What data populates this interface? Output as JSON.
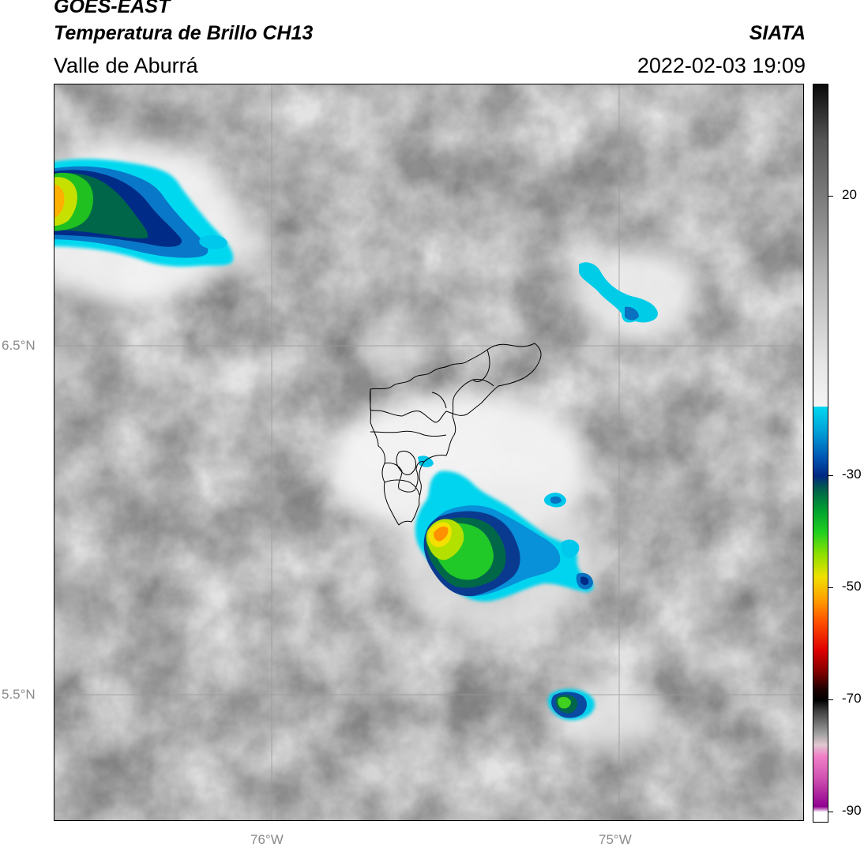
{
  "header": {
    "satellite": "GOES-EAST",
    "product": "Temperatura de Brillo CH13",
    "region": "Valle de Aburrá",
    "organization": "SIATA",
    "datetime": "2022-02-03 19:09"
  },
  "map": {
    "latitude_labels": [
      {
        "label": "6.5°N",
        "lat": 6.5
      },
      {
        "label": "5.5°N",
        "lat": 5.5
      }
    ],
    "longitude_labels": [
      {
        "label": "76°W",
        "lon": -76.0
      },
      {
        "label": "75°W",
        "lon": -75.0
      }
    ],
    "extent": {
      "lon_min": -76.63,
      "lon_max": -74.47,
      "lat_min": 5.19,
      "lat_max": 7.25
    },
    "gridlines": true,
    "features": [
      "grayscale-cloud-field",
      "cold-cloud-top-cores",
      "valle-de-aburra-municipal-boundaries"
    ]
  },
  "colorbar": {
    "min": -92,
    "max": 40,
    "ticks": [
      {
        "label": "20",
        "value": 20
      },
      {
        "label": "-30",
        "value": -30
      },
      {
        "label": "-50",
        "value": -50
      },
      {
        "label": "-70",
        "value": -70
      },
      {
        "label": "-90",
        "value": -90
      }
    ],
    "stops": [
      {
        "value": 40,
        "color": "#0a0a0a"
      },
      {
        "value": 30,
        "color": "#555555"
      },
      {
        "value": 15,
        "color": "#8e8e8e"
      },
      {
        "value": 5,
        "color": "#b8b8b8"
      },
      {
        "value": -10,
        "color": "#e6e6e6"
      },
      {
        "value": -17.5,
        "color": "#f4f4f4"
      },
      {
        "value": -17.6,
        "color": "#00d8f0"
      },
      {
        "value": -22,
        "color": "#00a0d8"
      },
      {
        "value": -27,
        "color": "#0050b0"
      },
      {
        "value": -30,
        "color": "#002880"
      },
      {
        "value": -32,
        "color": "#005a50"
      },
      {
        "value": -36,
        "color": "#00a030"
      },
      {
        "value": -40,
        "color": "#20d020"
      },
      {
        "value": -44,
        "color": "#90e000"
      },
      {
        "value": -48,
        "color": "#f0e000"
      },
      {
        "value": -52,
        "color": "#ffa000"
      },
      {
        "value": -56,
        "color": "#ff5000"
      },
      {
        "value": -61,
        "color": "#e00000"
      },
      {
        "value": -65,
        "color": "#800000"
      },
      {
        "value": -68,
        "color": "#200000"
      },
      {
        "value": -70,
        "color": "#000000"
      },
      {
        "value": -72,
        "color": "#404040"
      },
      {
        "value": -76,
        "color": "#a0a0a0"
      },
      {
        "value": -78,
        "color": "#e0c8d0"
      },
      {
        "value": -80,
        "color": "#f080c8"
      },
      {
        "value": -84,
        "color": "#d050b0"
      },
      {
        "value": -89,
        "color": "#900090"
      },
      {
        "value": -90,
        "color": "#ffffff"
      },
      {
        "value": -92,
        "color": "#ffffff"
      }
    ]
  }
}
